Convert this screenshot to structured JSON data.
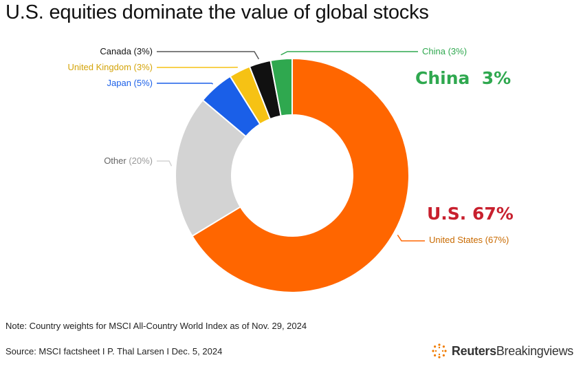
{
  "title": "U.S. equities dominate the value of global stocks",
  "chart_data": {
    "type": "pie",
    "donut": true,
    "slices": [
      {
        "name": "United States",
        "value": 67,
        "label": "United States (67%)",
        "color": "#ff6600",
        "label_color": "#c96a00"
      },
      {
        "name": "Other",
        "value": 20,
        "label": "Other (20%)",
        "color": "#d3d3d3",
        "label_color": "#666666"
      },
      {
        "name": "Japan",
        "value": 5,
        "label": "Japan (5%)",
        "color": "#1a5fe8",
        "label_color": "#1a5fe8"
      },
      {
        "name": "United Kingdom",
        "value": 3,
        "label": "United Kingdom (3%)",
        "color": "#f6c214",
        "label_color": "#d4a40a"
      },
      {
        "name": "Canada",
        "value": 3,
        "label": "Canada (3%)",
        "color": "#111111",
        "label_color": "#111111"
      },
      {
        "name": "China",
        "value": 3,
        "label": "China (3%)",
        "color": "#2fa84f",
        "label_color": "#2fa84f"
      }
    ],
    "annotations": [
      {
        "text": "China  3%",
        "color": "#2fa84f"
      },
      {
        "text": "U.S. 67%",
        "color": "#c8202e"
      }
    ]
  },
  "note": "Note: Country weights for MSCI All-Country World Index as of Nov. 29, 2024",
  "source": "Source: MSCI factsheet I P. Thal Larsen I Dec. 5, 2024",
  "brand": {
    "primary": "Reuters",
    "secondary": "Breakingviews"
  }
}
